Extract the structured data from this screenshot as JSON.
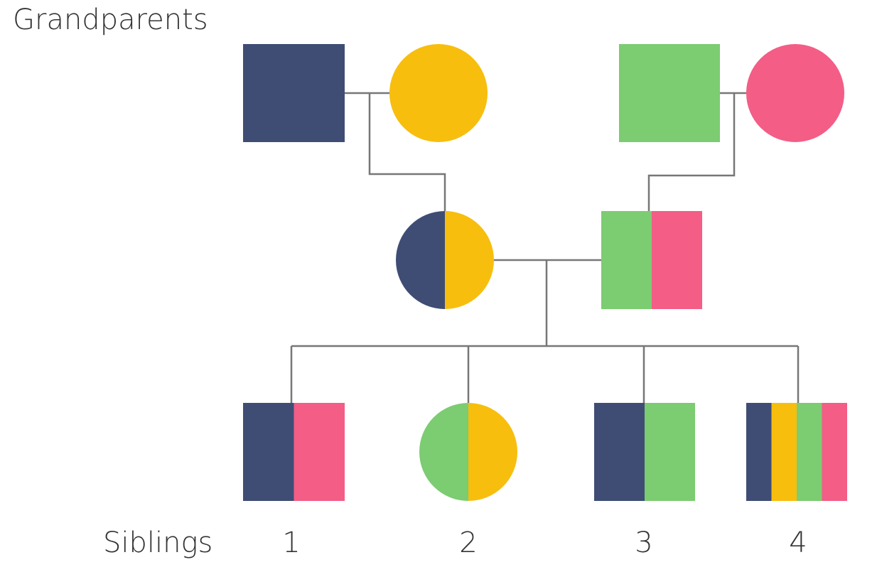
{
  "labels": {
    "grandparents": "Grandparents",
    "siblings": "Siblings"
  },
  "sibling_numbers": [
    "1",
    "2",
    "3",
    "4"
  ],
  "colors": {
    "navy": "#3f4d75",
    "yellow": "#f7be0e",
    "green": "#7ccc72",
    "pink": "#f35d86",
    "connector": "#777777"
  },
  "people": [
    {
      "name": "grandfather-1",
      "shape": "square",
      "colors": [
        "navy"
      ]
    },
    {
      "name": "grandmother-1",
      "shape": "circle",
      "colors": [
        "yellow"
      ]
    },
    {
      "name": "grandfather-2",
      "shape": "square",
      "colors": [
        "green"
      ]
    },
    {
      "name": "grandmother-2",
      "shape": "circle",
      "colors": [
        "pink"
      ]
    },
    {
      "name": "mother",
      "shape": "circle",
      "colors": [
        "navy",
        "yellow"
      ]
    },
    {
      "name": "father",
      "shape": "square",
      "colors": [
        "green",
        "pink"
      ]
    },
    {
      "name": "sibling-1",
      "shape": "square",
      "colors": [
        "navy",
        "pink"
      ]
    },
    {
      "name": "sibling-2",
      "shape": "circle",
      "colors": [
        "green",
        "yellow"
      ]
    },
    {
      "name": "sibling-3",
      "shape": "square",
      "colors": [
        "navy",
        "green"
      ]
    },
    {
      "name": "sibling-4",
      "shape": "square",
      "colors": [
        "navy",
        "yellow",
        "green",
        "pink"
      ]
    }
  ]
}
